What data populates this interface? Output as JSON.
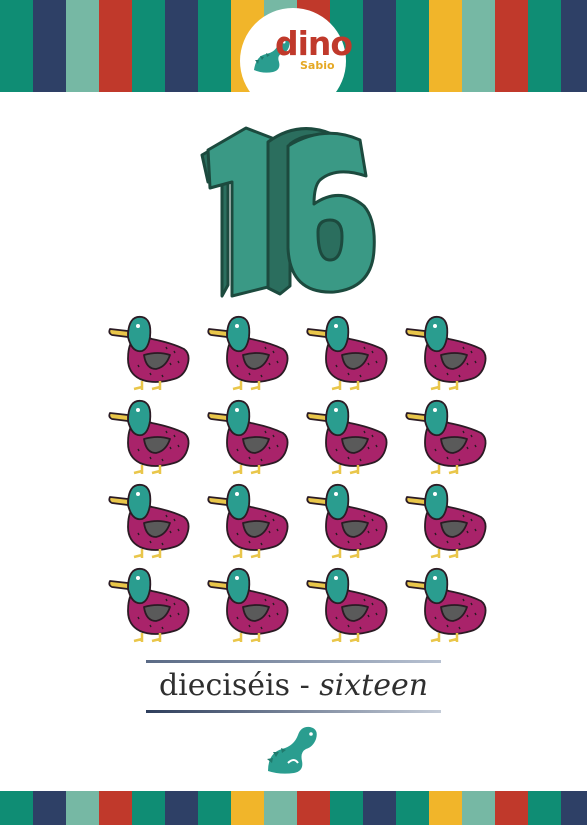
{
  "palette": {
    "stripes": [
      "#0f8d74",
      "#2e4066",
      "#76b8a4",
      "#c0392b",
      "#0f8d74",
      "#2e4066",
      "#0f8d74",
      "#f1b52a",
      "#76b8a4",
      "#c0392b",
      "#0f8d74",
      "#2e4066",
      "#0f8d74",
      "#f1b52a",
      "#76b8a4",
      "#c0392b",
      "#0f8d74",
      "#2e4066"
    ],
    "teal": "#2f9b86",
    "number_dark": "#1c4a3e",
    "duck_body": "#a9236a",
    "duck_head": "#2a9d8f",
    "duck_beak": "#e9c64a"
  },
  "logo": {
    "word": "dino",
    "sub": "Sabio",
    "icon": "dino-icon"
  },
  "number": {
    "value": "16",
    "count": 16,
    "item_icon": "duck-icon"
  },
  "caption": {
    "spanish": "dieciséis",
    "separator": " - ",
    "english": "sixteen"
  },
  "mascot": {
    "icon": "dinosaur-icon"
  }
}
